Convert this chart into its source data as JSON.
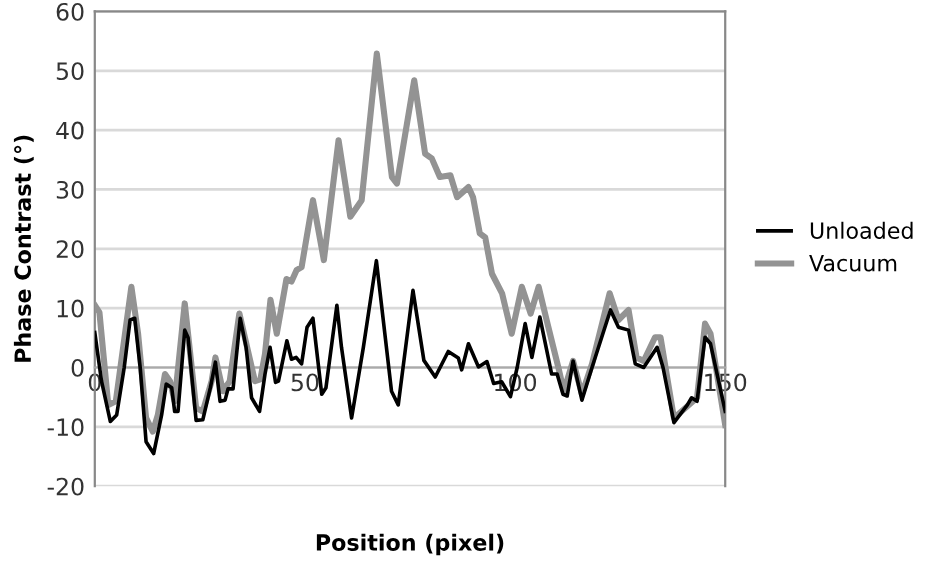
{
  "chart_data": {
    "type": "line",
    "xlabel": "Position (pixel)",
    "ylabel": "Phase Contrast (°)",
    "xlim": [
      0,
      150
    ],
    "xticks": [
      0,
      50,
      100,
      150
    ],
    "ylim": [
      -20,
      60
    ],
    "yticks": [
      -20,
      -10,
      0,
      10,
      20,
      30,
      40,
      50,
      60
    ],
    "grid": "y",
    "legend": "right",
    "marker": "none",
    "line_style": "solid",
    "series": [
      {
        "name": "Unloaded",
        "color": "#000000",
        "x": [
          0,
          1.6,
          3.7,
          5.2,
          7,
          8.4,
          9.5,
          10.8,
          12.2,
          14,
          15.9,
          17,
          18.3,
          19,
          19.8,
          21.4,
          22.2,
          24.1,
          25.7,
          27.5,
          28.7,
          29.8,
          31,
          31.7,
          32.9,
          34.6,
          36,
          37.3,
          39.2,
          40.5,
          41.7,
          43,
          43.7,
          45.7,
          46.8,
          47.9,
          49.2,
          50.5,
          51.9,
          54,
          55,
          57.6,
          58.7,
          61.1,
          63.9,
          67,
          70.6,
          72.2,
          75.7,
          78.3,
          81,
          84.1,
          86.5,
          87.3,
          88.9,
          91.3,
          93.3,
          94.9,
          96.8,
          98.9,
          100.5,
          102.4,
          104,
          105.9,
          108.7,
          110,
          111.4,
          112.4,
          113.8,
          115.9,
          118.3,
          122.7,
          124.6,
          127,
          128.6,
          130.6,
          133.8,
          135.2,
          137.8,
          141,
          142,
          143.3,
          145.2,
          146.5,
          150
        ],
        "values": [
          5.9,
          -2.3,
          -9.1,
          -8,
          0,
          8,
          8.3,
          0,
          -12.5,
          -14.5,
          -8,
          -2.8,
          -3.4,
          -7.4,
          -7.4,
          6.3,
          5,
          -8.9,
          -8.8,
          -3.4,
          0.9,
          -5.7,
          -5.5,
          -3.6,
          -3.6,
          8.3,
          3.4,
          -5.1,
          -7.4,
          -1.1,
          3.4,
          -2.5,
          -2.3,
          4.5,
          1.4,
          1.7,
          0.6,
          6.8,
          8.3,
          -4.5,
          -3.4,
          10.5,
          3.4,
          -8.5,
          3.4,
          18,
          -4,
          -6.3,
          13,
          1.2,
          -1.6,
          2.7,
          1.6,
          -0.4,
          4,
          0.1,
          1,
          -2.7,
          -2.4,
          -4.9,
          0,
          7.4,
          1.7,
          8.5,
          -1.1,
          -1.1,
          -4.5,
          -4.8,
          1.1,
          -5.5,
          0,
          9.7,
          6.8,
          6.3,
          0.6,
          0,
          3.4,
          0,
          -9.3,
          -6.3,
          -5.1,
          -5.7,
          5.1,
          4,
          -7.4
        ]
      },
      {
        "name": "Vacuum",
        "color": "#939393",
        "x": [
          0,
          1.1,
          3.2,
          5,
          8.7,
          10.3,
          12.2,
          13.8,
          15,
          16.7,
          17.9,
          19,
          21.4,
          24.1,
          25.7,
          27.8,
          28.7,
          30.5,
          32.1,
          34.4,
          38.1,
          39.4,
          40.5,
          41.8,
          43.3,
          45.6,
          46.8,
          48,
          49.2,
          51.9,
          54.5,
          58,
          60.8,
          63.5,
          67.1,
          70.7,
          71.9,
          76,
          78.6,
          80.2,
          82.1,
          84.6,
          86.2,
          88.9,
          90,
          91.6,
          92.9,
          94.5,
          96.9,
          99.2,
          101.6,
          103.7,
          105.6,
          107.5,
          110.3,
          111.6,
          113.8,
          115.9,
          118.3,
          122.5,
          124.6,
          127,
          128.9,
          130.6,
          133.3,
          134.6,
          137.8,
          143.3,
          145.2,
          146.5,
          150
        ],
        "values": [
          10.5,
          9.3,
          -6.3,
          -5.7,
          13.6,
          5.7,
          -8.5,
          -10.8,
          -8,
          -1.1,
          -2.3,
          -5.7,
          10.8,
          -6.8,
          -7.4,
          -2.3,
          1.7,
          -4,
          -2.3,
          9.1,
          -2.3,
          -2,
          2.3,
          11.4,
          5.7,
          14.9,
          14.5,
          16.4,
          16.9,
          28.2,
          18.1,
          38.3,
          25.4,
          28.2,
          52.9,
          32.1,
          31,
          48.4,
          36,
          35.2,
          32.1,
          32.4,
          28.7,
          30.4,
          28.7,
          22.6,
          21.9,
          15.8,
          12.5,
          5.7,
          13.6,
          9.1,
          13.6,
          8,
          0,
          -4,
          1.1,
          -4.5,
          0.6,
          12.5,
          8,
          9.7,
          1.7,
          1.1,
          5.1,
          5.1,
          -8.5,
          -5.1,
          7.4,
          5.7,
          -9.7
        ]
      }
    ]
  }
}
